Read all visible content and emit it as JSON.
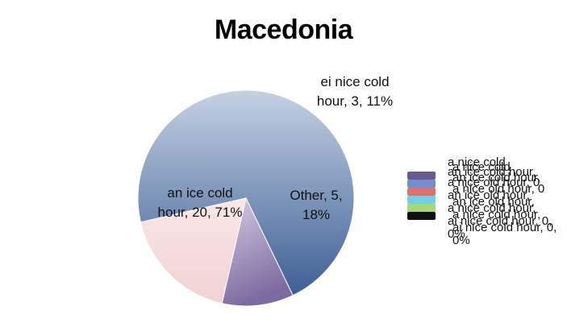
{
  "chart_data": {
    "type": "pie",
    "title": "Macedonia",
    "slices": [
      {
        "label": "an ice cold hour",
        "value": 20,
        "percent": "71%",
        "color": "#3d5f94",
        "display": [
          "an ice cold",
          "hour, 20, 71%"
        ]
      },
      {
        "label": "ei nice cold hour",
        "value": 3,
        "percent": "11%",
        "color": "#8a76a8",
        "display": [
          "ei nice cold",
          "hour, 3, 11%"
        ]
      },
      {
        "label": "Other",
        "value": 5,
        "percent": "18%",
        "color": "#f2d4d4",
        "display": [
          "Other, 5,",
          "18%"
        ]
      }
    ],
    "legend": {
      "placement": "right",
      "entries": [
        {
          "text": "a nice cold",
          "color": "#6b5a8e"
        },
        {
          "text": "an ice cold hour,",
          "color": "#6f8fcf"
        },
        {
          "text": "a nice old hour, 0",
          "color": "#e07070"
        },
        {
          "text": "an ice old hour,",
          "color": "#6fd0e8"
        },
        {
          "text": "a nice cold hour,",
          "color": "#a8d878"
        },
        {
          "text": "ai nice cold hour, 0,",
          "color": "#111111"
        },
        {
          "text": "0%",
          "color": "#111111"
        }
      ]
    }
  }
}
